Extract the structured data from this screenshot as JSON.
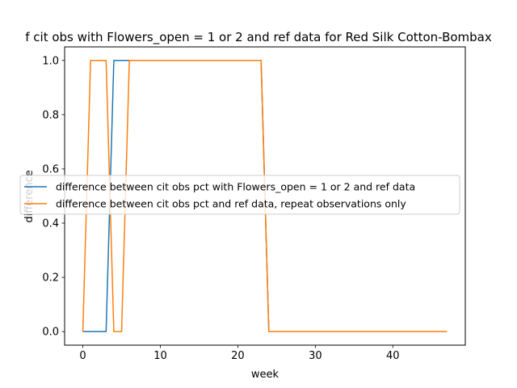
{
  "chart_data": {
    "type": "line",
    "title": "f cit obs with Flowers_open = 1 or 2 and ref data for Red Silk Cotton-Bombax",
    "xlabel": "week",
    "ylabel": "difference",
    "xlim": [
      -2.35,
      49.35
    ],
    "ylim": [
      -0.05,
      1.05
    ],
    "xticks": [
      0,
      10,
      20,
      30,
      40
    ],
    "yticks": [
      0.0,
      0.2,
      0.4,
      0.6,
      0.8,
      1.0
    ],
    "grid": false,
    "legend_position": "center-left",
    "series": [
      {
        "name": "difference between cit obs pct with Flowers_open = 1 or 2 and ref data",
        "color": "#1f77b4",
        "x": [
          0,
          1,
          2,
          3,
          4,
          5,
          6,
          7,
          8,
          9,
          10,
          11,
          12,
          13,
          14,
          15,
          16,
          17,
          18,
          19,
          20,
          21,
          22,
          23,
          24,
          25,
          26,
          27,
          28,
          29,
          30,
          31,
          32,
          33,
          34,
          35,
          36,
          37,
          38,
          39,
          40,
          41,
          42,
          43,
          44,
          45,
          46,
          47
        ],
        "values": [
          0,
          0,
          0,
          0,
          1,
          1,
          1,
          1,
          1,
          1,
          1,
          1,
          1,
          1,
          1,
          1,
          1,
          1,
          1,
          1,
          1,
          1,
          1,
          1,
          0,
          0,
          0,
          0,
          0,
          0,
          0,
          0,
          0,
          0,
          0,
          0,
          0,
          0,
          0,
          0,
          0,
          0,
          0,
          0,
          0,
          0,
          0,
          0
        ]
      },
      {
        "name": "difference between cit obs pct and ref data, repeat observations only",
        "color": "#ff7f0e",
        "x": [
          0,
          1,
          2,
          3,
          4,
          5,
          6,
          7,
          8,
          9,
          10,
          11,
          12,
          13,
          14,
          15,
          16,
          17,
          18,
          19,
          20,
          21,
          22,
          23,
          24,
          25,
          26,
          27,
          28,
          29,
          30,
          31,
          32,
          33,
          34,
          35,
          36,
          37,
          38,
          39,
          40,
          41,
          42,
          43,
          44,
          45,
          46,
          47
        ],
        "values": [
          0,
          1,
          1,
          1,
          0,
          0,
          1,
          1,
          1,
          1,
          1,
          1,
          1,
          1,
          1,
          1,
          1,
          1,
          1,
          1,
          1,
          1,
          1,
          1,
          0,
          0,
          0,
          0,
          0,
          0,
          0,
          0,
          0,
          0,
          0,
          0,
          0,
          0,
          0,
          0,
          0,
          0,
          0,
          0,
          0,
          0,
          0,
          0
        ]
      }
    ]
  }
}
